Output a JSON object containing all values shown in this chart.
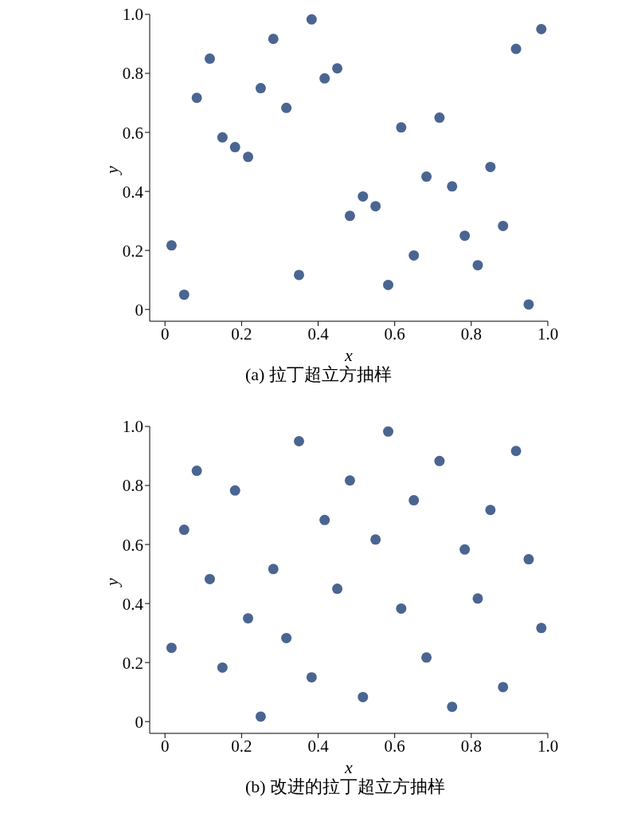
{
  "chart_data": [
    {
      "type": "scatter",
      "title": "(a) 拉丁超立方抽样",
      "xlabel": "x",
      "ylabel": "y",
      "xlim": [
        -0.04,
        1
      ],
      "ylim": [
        -0.04,
        1
      ],
      "xticks": [
        0,
        0.2,
        0.4,
        0.6,
        0.8,
        {
          "value": 1,
          "label": "1.0"
        }
      ],
      "yticks": [
        0,
        0.2,
        0.4,
        0.6,
        0.8,
        {
          "value": 1,
          "label": "1.0"
        }
      ],
      "grid": false,
      "legend": false,
      "marker": "circle",
      "x": [
        0.017,
        0.05,
        0.083,
        0.117,
        0.15,
        0.183,
        0.217,
        0.25,
        0.283,
        0.317,
        0.35,
        0.383,
        0.417,
        0.45,
        0.483,
        0.517,
        0.55,
        0.583,
        0.617,
        0.65,
        0.683,
        0.717,
        0.75,
        0.783,
        0.817,
        0.85,
        0.883,
        0.917,
        0.95,
        0.983
      ],
      "series": [
        {
          "color": "#4a6591",
          "values": [
            0.217,
            0.05,
            0.717,
            0.85,
            0.583,
            0.55,
            0.517,
            0.75,
            0.917,
            0.683,
            0.117,
            0.983,
            0.783,
            0.817,
            0.317,
            0.383,
            0.35,
            0.083,
            0.617,
            0.183,
            0.45,
            0.65,
            0.417,
            0.25,
            0.15,
            0.483,
            0.283,
            0.883,
            0.017,
            0.95
          ]
        }
      ]
    },
    {
      "type": "scatter",
      "title": "(b) 改进的拉丁超立方抽样",
      "xlabel": "x",
      "ylabel": "y",
      "xlim": [
        -0.04,
        1
      ],
      "ylim": [
        -0.04,
        1
      ],
      "xticks": [
        0,
        0.2,
        0.4,
        0.6,
        0.8,
        {
          "value": 1,
          "label": "1.0"
        }
      ],
      "yticks": [
        0,
        0.2,
        0.4,
        0.6,
        0.8,
        {
          "value": 1,
          "label": "1.0"
        }
      ],
      "grid": false,
      "legend": false,
      "marker": "circle",
      "x": [
        0.017,
        0.05,
        0.083,
        0.117,
        0.15,
        0.183,
        0.217,
        0.25,
        0.283,
        0.317,
        0.35,
        0.383,
        0.417,
        0.45,
        0.483,
        0.517,
        0.55,
        0.583,
        0.617,
        0.65,
        0.683,
        0.717,
        0.75,
        0.783,
        0.817,
        0.85,
        0.883,
        0.917,
        0.95,
        0.983
      ],
      "series": [
        {
          "color": "#4a6591",
          "values": [
            0.25,
            0.65,
            0.85,
            0.483,
            0.183,
            0.783,
            0.35,
            0.017,
            0.517,
            0.283,
            0.95,
            0.15,
            0.683,
            0.45,
            0.817,
            0.083,
            0.617,
            0.983,
            0.383,
            0.75,
            0.217,
            0.883,
            0.05,
            0.583,
            0.417,
            0.717,
            0.117,
            0.917,
            0.55,
            0.317
          ]
        }
      ]
    }
  ]
}
